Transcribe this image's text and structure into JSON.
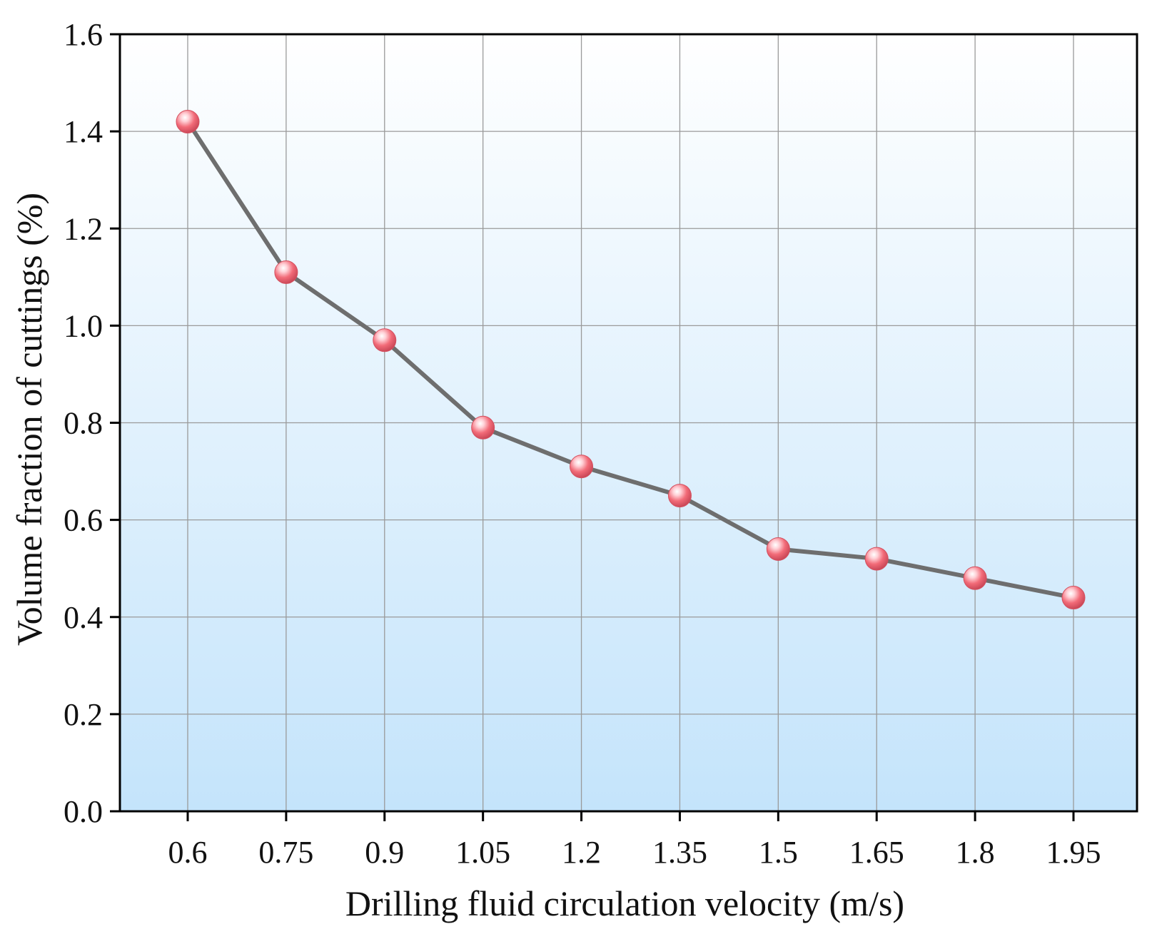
{
  "chart_data": {
    "type": "line",
    "title": "",
    "xlabel": "Drilling fluid circulation velocity (m/s)",
    "ylabel": "Volume fraction of cuttings (%)",
    "x": [
      0.6,
      0.75,
      0.9,
      1.05,
      1.2,
      1.35,
      1.5,
      1.65,
      1.8,
      1.95
    ],
    "x_tick_labels": [
      "0.6",
      "0.75",
      "0.9",
      "1.05",
      "1.2",
      "1.35",
      "1.5",
      "1.65",
      "1.8",
      "1.95"
    ],
    "y_tick_labels": [
      "0.0",
      "0.2",
      "0.4",
      "0.6",
      "0.8",
      "1.0",
      "1.2",
      "1.4",
      "1.6"
    ],
    "ylim": [
      0,
      1.6
    ],
    "y_ticks": [
      0,
      0.2,
      0.4,
      0.6,
      0.8,
      1.0,
      1.2,
      1.4,
      1.6
    ],
    "grid": true,
    "series": [
      {
        "values": [
          1.42,
          1.11,
          0.97,
          0.79,
          0.71,
          0.65,
          0.54,
          0.52,
          0.48,
          0.44
        ]
      }
    ],
    "colors": {
      "line": "#6e6e6e",
      "marker": "#f26b78",
      "background_top": "#ffffff",
      "background_bottom": "#c4e4fb",
      "grid": "#9a9a9a"
    }
  }
}
